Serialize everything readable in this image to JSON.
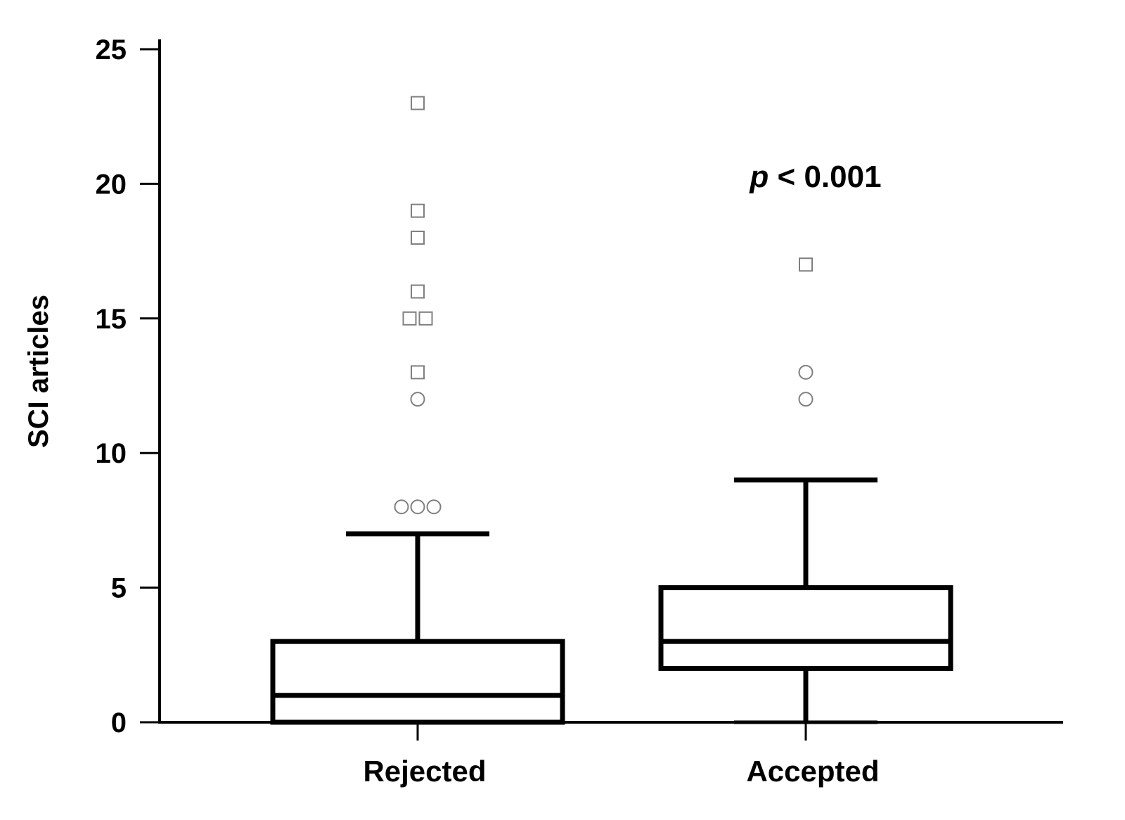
{
  "chart_data": {
    "type": "box",
    "ylabel": "SCI articles",
    "ylim": [
      0,
      25
    ],
    "yticks": [
      "0",
      "5",
      "10",
      "15",
      "20",
      "25"
    ],
    "categories": [
      "Rejected",
      "Accepted"
    ],
    "boxes": [
      {
        "category": "Rejected",
        "whisker_low": 0,
        "q1": 0,
        "median": 1,
        "q3": 3,
        "whisker_high": 7,
        "outliers_circle": [
          8,
          8,
          8,
          12
        ],
        "outliers_square": [
          13,
          15,
          15,
          16,
          18,
          19,
          23
        ]
      },
      {
        "category": "Accepted",
        "whisker_low": 0,
        "q1": 2,
        "median": 3,
        "q3": 5,
        "whisker_high": 9,
        "outliers_circle": [
          12,
          13
        ],
        "outliers_square": [
          17
        ]
      }
    ],
    "annotation": {
      "italic_part": "p",
      "rest": " < 0.001"
    },
    "grid": false,
    "colors": {
      "line": "#000000",
      "outlier": "#7f7f7f"
    }
  }
}
